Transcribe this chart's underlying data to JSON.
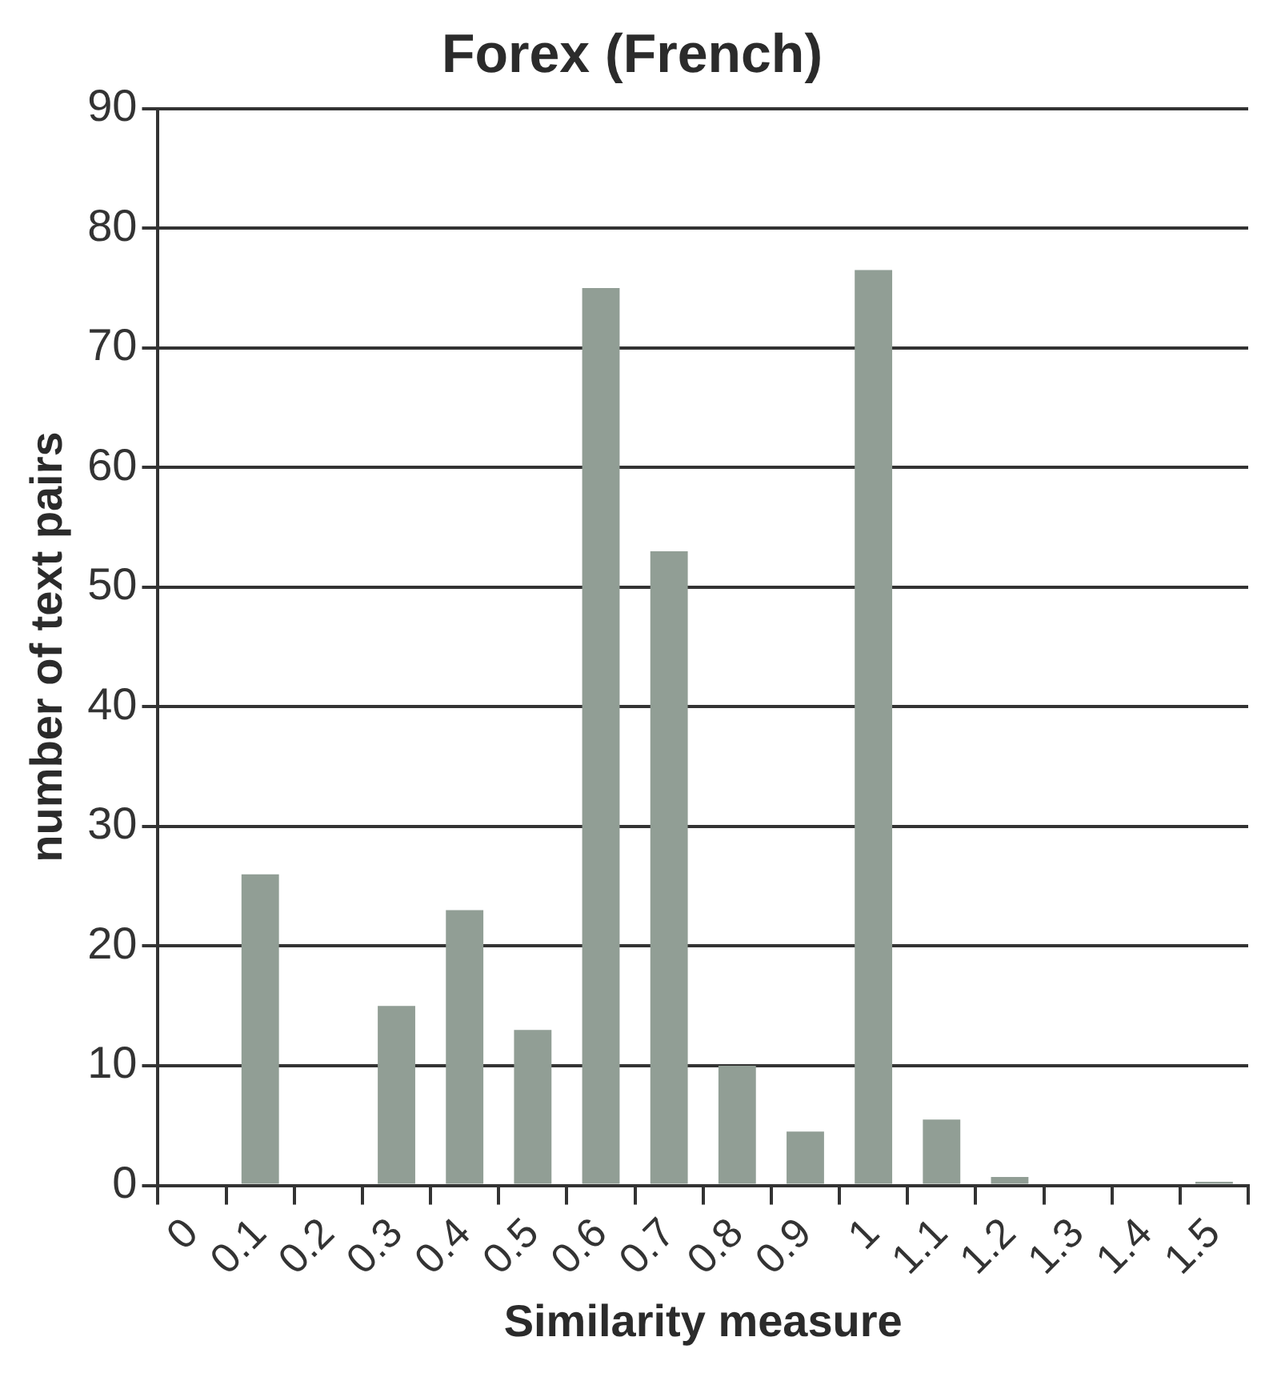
{
  "chart_data": {
    "type": "bar",
    "title": "Forex (French)",
    "xlabel": "Similarity measure",
    "ylabel": "number of text pairs",
    "categories": [
      "0",
      "0.1",
      "0.2",
      "0.3",
      "0.4",
      "0.5",
      "0.6",
      "0.7",
      "0.8",
      "0.9",
      "1",
      "1.1",
      "1.2",
      "1.3",
      "1.4",
      "1.5"
    ],
    "values": [
      0,
      26,
      0,
      15,
      23,
      13,
      75,
      53,
      10,
      4.5,
      76.5,
      5.5,
      0.7,
      0,
      0,
      0.3
    ],
    "color": "#919e95",
    "ylim": [
      0,
      90
    ],
    "yticks": [
      0,
      10,
      20,
      30,
      40,
      50,
      60,
      70,
      80,
      90
    ],
    "grid": "y"
  }
}
